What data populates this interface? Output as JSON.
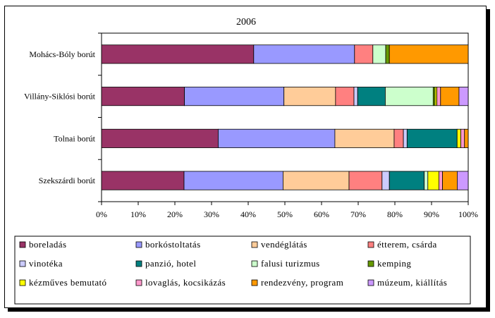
{
  "chart_data": {
    "type": "bar",
    "orientation": "horizontal",
    "stacked": "percent",
    "title": "2006",
    "xlim": [
      0,
      100
    ],
    "xticks": [
      "0%",
      "10%",
      "20%",
      "30%",
      "40%",
      "50%",
      "60%",
      "70%",
      "80%",
      "90%",
      "100%"
    ],
    "grid": false,
    "legend_position": "bottom",
    "categories": [
      "Mohács-Bóly borút",
      "Villány-Siklósi borút",
      "Tolnai borút",
      "Szekszárdi borút"
    ],
    "series": [
      {
        "name": "boreladás",
        "color": "#993366",
        "values": [
          41.5,
          22.5,
          31.5,
          22.5
        ]
      },
      {
        "name": "borkóstoltatás",
        "color": "#9999FF",
        "values": [
          27.5,
          27.0,
          31.5,
          27.0
        ]
      },
      {
        "name": "vendéglátás",
        "color": "#FFCC99",
        "values": [
          0,
          14.0,
          16.0,
          18.0
        ]
      },
      {
        "name": "étterem, csárda",
        "color": "#FF8080",
        "values": [
          5.0,
          5.0,
          2.5,
          9.0
        ]
      },
      {
        "name": "vinotéka",
        "color": "#CCCCFF",
        "values": [
          0,
          1.0,
          1.0,
          2.0
        ]
      },
      {
        "name": "panzió, hotel",
        "color": "#008080",
        "values": [
          0,
          7.5,
          13.5,
          9.5
        ]
      },
      {
        "name": "falusi turizmus",
        "color": "#CCFFCC",
        "values": [
          3.5,
          13.0,
          0,
          1.0
        ]
      },
      {
        "name": "kemping",
        "color": "#669900",
        "values": [
          1.0,
          0.5,
          0,
          0
        ]
      },
      {
        "name": "kézműves bemutató",
        "color": "#FFFF00",
        "values": [
          0,
          0.5,
          1.0,
          3.0
        ]
      },
      {
        "name": "lovaglás, kocsikázás",
        "color": "#FF99CC",
        "values": [
          0,
          1.0,
          1.0,
          1.0
        ]
      },
      {
        "name": "rendezvény, program",
        "color": "#FF9900",
        "values": [
          21.5,
          5.0,
          1.0,
          4.0
        ]
      },
      {
        "name": "múzeum, kiállítás",
        "color": "#CC99FF",
        "values": [
          0,
          2.5,
          0,
          3.0
        ]
      }
    ]
  }
}
